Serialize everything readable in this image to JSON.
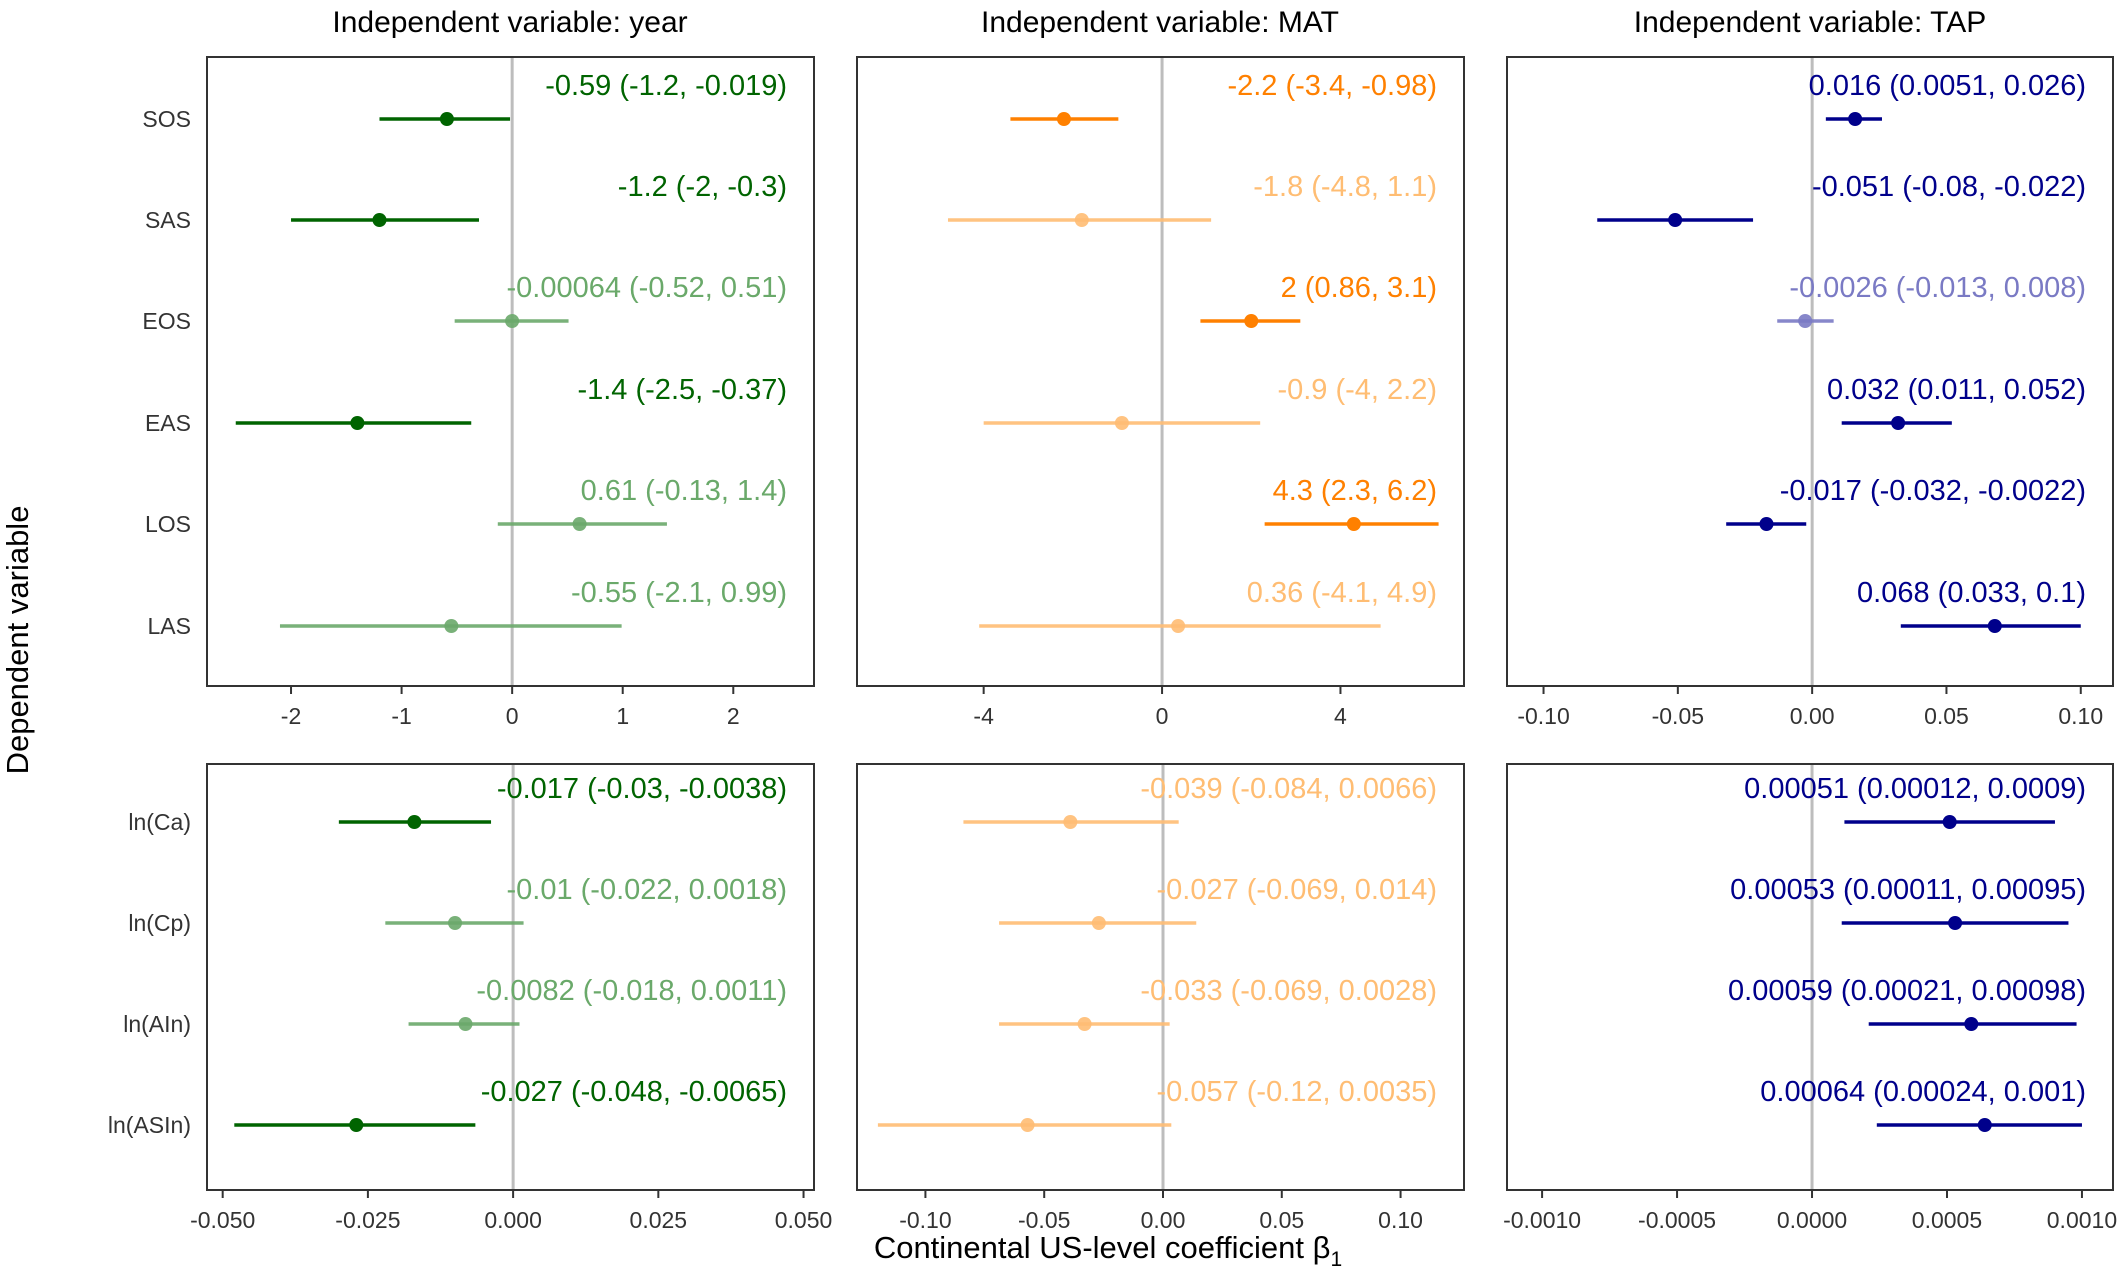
{
  "chart_data": {
    "type": "forest",
    "xlabel": "Continental US-level coefficient β",
    "xlabel_subscript": "1",
    "ylabel": "Dependent variable",
    "reference_line": 0,
    "columns": [
      {
        "key": "year",
        "title": "Independent variable: year",
        "color": "#006400",
        "color_light": "#6aa96a"
      },
      {
        "key": "MAT",
        "title": "Independent variable: MAT",
        "color": "#ff8000",
        "color_light": "#ffbd73"
      },
      {
        "key": "TAP",
        "title": "Independent variable: TAP",
        "color": "#00008b",
        "color_light": "#7a7ac4"
      }
    ],
    "rows": [
      {
        "key": "phenology",
        "labels": [
          "SOS",
          "SAS",
          "EOS",
          "EAS",
          "LOS",
          "LAS"
        ],
        "panels": [
          {
            "xlim": [
              -2.76,
              2.73
            ],
            "ticks": [
              -2,
              -1,
              0,
              1,
              2
            ],
            "tick_labels": [
              "-2",
              "-1",
              "0",
              "1",
              "2"
            ],
            "points": [
              {
                "label": "SOS",
                "est": -0.59,
                "lo": -1.2,
                "hi": -0.019,
                "significant": true,
                "text": "-0.59 (-1.2, -0.019)"
              },
              {
                "label": "SAS",
                "est": -1.2,
                "lo": -2,
                "hi": -0.3,
                "significant": true,
                "text": "-1.2 (-2, -0.3)"
              },
              {
                "label": "EOS",
                "est": -0.00064,
                "lo": -0.52,
                "hi": 0.51,
                "significant": false,
                "text": "-0.00064 (-0.52, 0.51)"
              },
              {
                "label": "EAS",
                "est": -1.4,
                "lo": -2.5,
                "hi": -0.37,
                "significant": true,
                "text": "-1.4 (-2.5, -0.37)"
              },
              {
                "label": "LOS",
                "est": 0.61,
                "lo": -0.13,
                "hi": 1.4,
                "significant": false,
                "text": "0.61 (-0.13, 1.4)"
              },
              {
                "label": "LAS",
                "est": -0.55,
                "lo": -2.1,
                "hi": 0.99,
                "significant": false,
                "text": "-0.55 (-2.1, 0.99)"
              }
            ]
          },
          {
            "xlim": [
              -6.84,
              6.77
            ],
            "ticks": [
              -4,
              0,
              4
            ],
            "tick_labels": [
              "-4",
              "0",
              "4"
            ],
            "points": [
              {
                "label": "SOS",
                "est": -2.2,
                "lo": -3.4,
                "hi": -0.98,
                "significant": true,
                "text": "-2.2 (-3.4, -0.98)"
              },
              {
                "label": "SAS",
                "est": -1.8,
                "lo": -4.8,
                "hi": 1.1,
                "significant": false,
                "text": "-1.8 (-4.8, 1.1)"
              },
              {
                "label": "EOS",
                "est": 2,
                "lo": 0.86,
                "hi": 3.1,
                "significant": true,
                "text": "2 (0.86, 3.1)"
              },
              {
                "label": "EAS",
                "est": -0.9,
                "lo": -4,
                "hi": 2.2,
                "significant": false,
                "text": "-0.9 (-4, 2.2)"
              },
              {
                "label": "LOS",
                "est": 4.3,
                "lo": 2.3,
                "hi": 6.2,
                "significant": true,
                "text": "4.3 (2.3, 6.2)"
              },
              {
                "label": "LAS",
                "est": 0.36,
                "lo": -4.1,
                "hi": 4.9,
                "significant": false,
                "text": "0.36 (-4.1, 4.9)"
              }
            ]
          },
          {
            "xlim": [
              -0.1136,
              0.112
            ],
            "ticks": [
              -0.1,
              -0.05,
              0,
              0.05,
              0.1
            ],
            "tick_labels": [
              "-0.10",
              "-0.05",
              "0.00",
              "0.05",
              "0.10"
            ],
            "points": [
              {
                "label": "SOS",
                "est": 0.016,
                "lo": 0.0051,
                "hi": 0.026,
                "significant": true,
                "text": "0.016 (0.0051, 0.026)"
              },
              {
                "label": "SAS",
                "est": -0.051,
                "lo": -0.08,
                "hi": -0.022,
                "significant": true,
                "text": "-0.051 (-0.08, -0.022)"
              },
              {
                "label": "EOS",
                "est": -0.0026,
                "lo": -0.013,
                "hi": 0.008,
                "significant": false,
                "text": "-0.0026 (-0.013, 0.008)"
              },
              {
                "label": "EAS",
                "est": 0.032,
                "lo": 0.011,
                "hi": 0.052,
                "significant": true,
                "text": "0.032 (0.011, 0.052)"
              },
              {
                "label": "LOS",
                "est": -0.017,
                "lo": -0.032,
                "hi": -0.0022,
                "significant": true,
                "text": "-0.017 (-0.032, -0.0022)"
              },
              {
                "label": "LAS",
                "est": 0.068,
                "lo": 0.033,
                "hi": 0.1,
                "significant": true,
                "text": "0.068 (0.033, 0.1)"
              }
            ]
          }
        ]
      },
      {
        "key": "log_metrics",
        "labels": [
          "ln(Ca)",
          "ln(Cp)",
          "ln(AIn)",
          "ln(ASIn)"
        ],
        "panels": [
          {
            "xlim": [
              -0.0527,
              0.0518
            ],
            "ticks": [
              -0.05,
              -0.025,
              0,
              0.025,
              0.05
            ],
            "tick_labels": [
              "-0.050",
              "-0.025",
              "0.000",
              "0.025",
              "0.050"
            ],
            "points": [
              {
                "label": "ln(Ca)",
                "est": -0.017,
                "lo": -0.03,
                "hi": -0.0038,
                "significant": true,
                "text": "-0.017 (-0.03, -0.0038)"
              },
              {
                "label": "ln(Cp)",
                "est": -0.01,
                "lo": -0.022,
                "hi": 0.0018,
                "significant": false,
                "text": "-0.01 (-0.022, 0.0018)"
              },
              {
                "label": "ln(AIn)",
                "est": -0.0082,
                "lo": -0.018,
                "hi": 0.0011,
                "significant": false,
                "text": "-0.0082 (-0.018, 0.0011)"
              },
              {
                "label": "ln(ASIn)",
                "est": -0.027,
                "lo": -0.048,
                "hi": -0.0065,
                "significant": true,
                "text": "-0.027 (-0.048, -0.0065)"
              }
            ]
          },
          {
            "xlim": [
              -0.1288,
              0.1267
            ],
            "ticks": [
              -0.1,
              -0.05,
              0,
              0.05,
              0.1
            ],
            "tick_labels": [
              "-0.10",
              "-0.05",
              "0.00",
              "0.05",
              "0.10"
            ],
            "points": [
              {
                "label": "ln(Ca)",
                "est": -0.039,
                "lo": -0.084,
                "hi": 0.0066,
                "significant": false,
                "text": "-0.039 (-0.084, 0.0066)"
              },
              {
                "label": "ln(Cp)",
                "est": -0.027,
                "lo": -0.069,
                "hi": 0.014,
                "significant": false,
                "text": "-0.027 (-0.069, 0.014)"
              },
              {
                "label": "ln(AIn)",
                "est": -0.033,
                "lo": -0.069,
                "hi": 0.0028,
                "significant": false,
                "text": "-0.033 (-0.069, 0.0028)"
              },
              {
                "label": "ln(ASIn)",
                "est": -0.057,
                "lo": -0.12,
                "hi": 0.0035,
                "significant": false,
                "text": "-0.057 (-0.12, 0.0035)"
              }
            ]
          },
          {
            "xlim": [
              -0.00113,
              0.001115
            ],
            "ticks": [
              -0.001,
              -0.0005,
              0,
              0.0005,
              0.001
            ],
            "tick_labels": [
              "-0.0010",
              "-0.0005",
              "0.0000",
              "0.0005",
              "0.0010"
            ],
            "points": [
              {
                "label": "ln(Ca)",
                "est": 0.00051,
                "lo": 0.00012,
                "hi": 0.0009,
                "significant": true,
                "text": "0.00051 (0.00012, 0.0009)"
              },
              {
                "label": "ln(Cp)",
                "est": 0.00053,
                "lo": 0.00011,
                "hi": 0.00095,
                "significant": true,
                "text": "0.00053 (0.00011, 0.00095)"
              },
              {
                "label": "ln(AIn)",
                "est": 0.00059,
                "lo": 0.00021,
                "hi": 0.00098,
                "significant": true,
                "text": "0.00059 (0.00021, 0.00098)"
              },
              {
                "label": "ln(ASIn)",
                "est": 0.00064,
                "lo": 0.00024,
                "hi": 0.001,
                "significant": true,
                "text": "0.00064 (0.00024, 0.001)"
              }
            ]
          }
        ]
      }
    ]
  }
}
